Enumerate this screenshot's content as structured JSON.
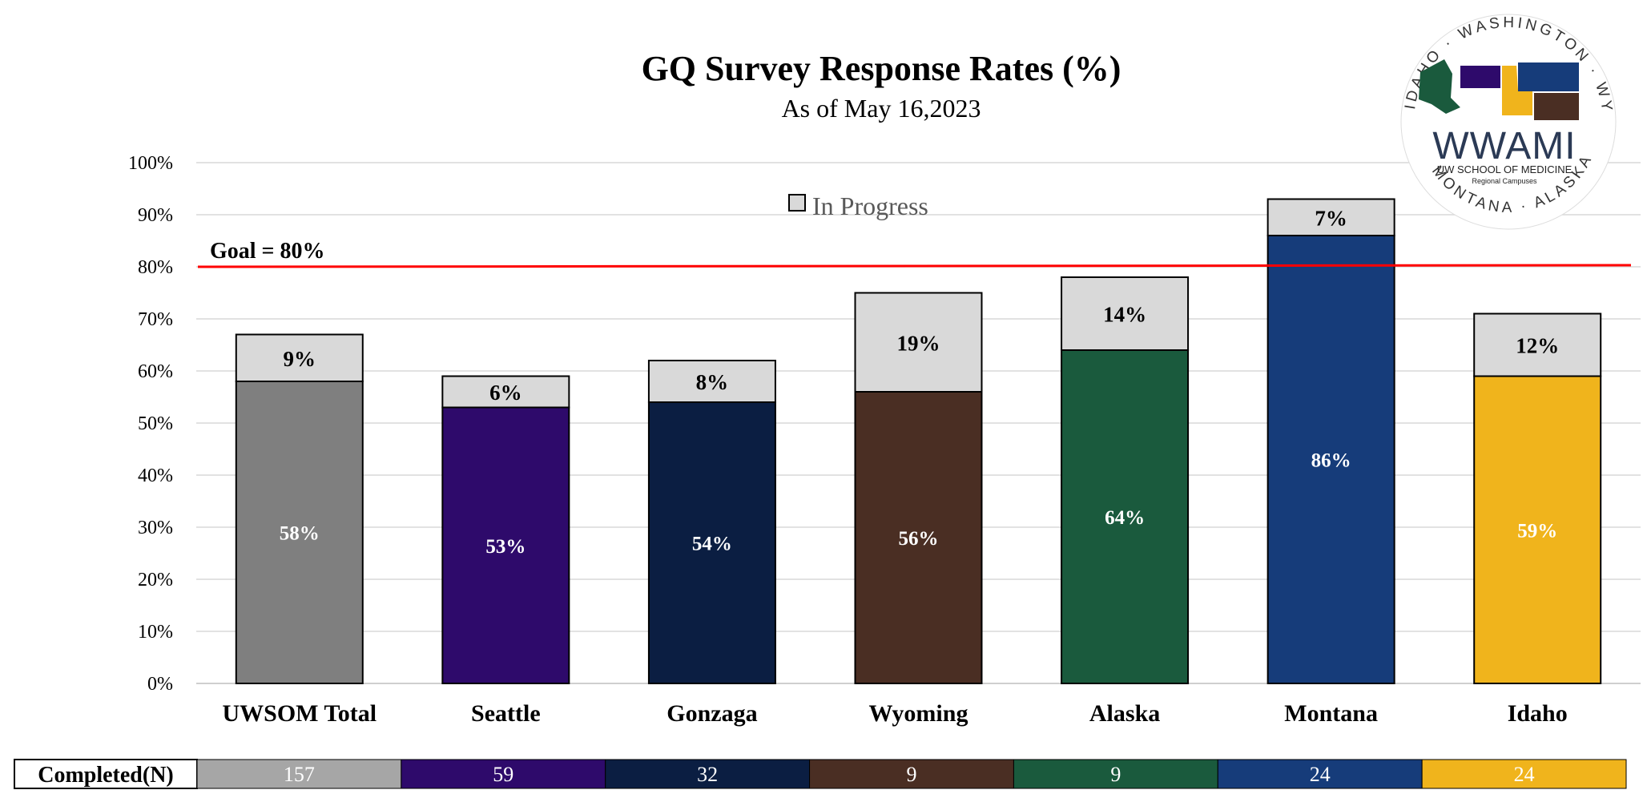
{
  "chart_data": {
    "type": "bar",
    "stacked": true,
    "title": "GQ Survey Response Rates (%)",
    "subtitle": "As of May 16,2023",
    "categories": [
      "UWSOM Total",
      "Seattle",
      "Gonzaga",
      "Wyoming",
      "Alaska",
      "Montana",
      "Idaho"
    ],
    "series": [
      {
        "name": "Completed",
        "values": [
          58,
          53,
          54,
          56,
          64,
          86,
          59
        ],
        "labels": [
          "58%",
          "53%",
          "54%",
          "56%",
          "64%",
          "86%",
          "59%"
        ],
        "colors": [
          "#7f7f7f",
          "#2e0a6b",
          "#0b1e42",
          "#4a2e23",
          "#1a5a3d",
          "#163c7a",
          "#f0b41c"
        ]
      },
      {
        "name": "In Progress",
        "values": [
          9,
          6,
          8,
          19,
          14,
          7,
          12
        ],
        "labels": [
          "9%",
          "6%",
          "8%",
          "19%",
          "14%",
          "7%",
          "12%"
        ],
        "color": "#d9d9d9"
      }
    ],
    "ylim": [
      0,
      100
    ],
    "yticks": [
      "0%",
      "10%",
      "20%",
      "30%",
      "40%",
      "50%",
      "60%",
      "70%",
      "80%",
      "90%",
      "100%"
    ],
    "grid": true,
    "legend_position": "top-center",
    "legend_label": "In Progress",
    "goal": {
      "value": 80,
      "label": "Goal = 80%",
      "color": "#ff0000"
    },
    "table": {
      "header": "Completed(N)",
      "values": [
        "157",
        "59",
        "32",
        "9",
        "9",
        "24",
        "24"
      ],
      "colors": [
        "#a6a6a6",
        "#2e0a6b",
        "#0b1e42",
        "#4a2e23",
        "#1a5a3d",
        "#163c7a",
        "#f0b41c"
      ]
    }
  },
  "logo": {
    "name": "WWAMI",
    "line1": "UW SCHOOL OF MEDICINE",
    "line2": "Regional Campuses",
    "states": [
      "WASHINGTON",
      "WYOMING",
      "ALASKA",
      "MONTANA",
      "IDAHO"
    ],
    "colors": [
      "#2e0a6b",
      "#f0b41c",
      "#1a5a3d",
      "#163c7a",
      "#4a2e23"
    ]
  }
}
